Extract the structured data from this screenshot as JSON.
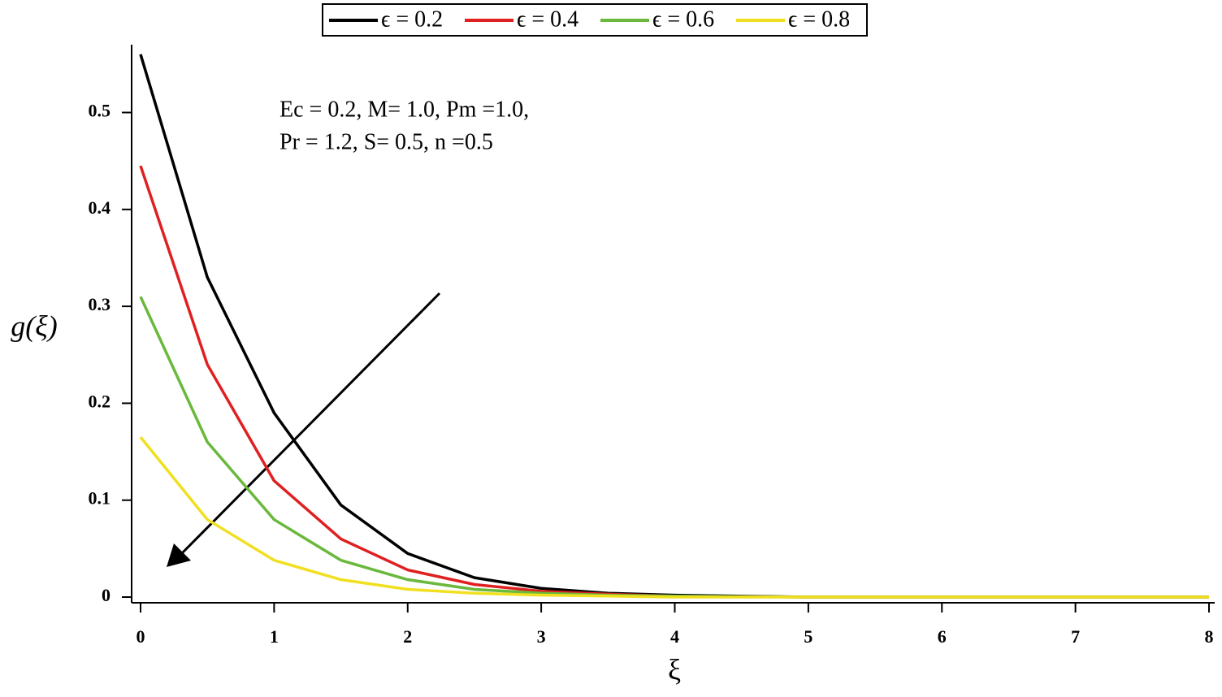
{
  "chart_data": {
    "type": "line",
    "x": [
      0,
      0.5,
      1,
      1.5,
      2,
      2.5,
      3,
      3.5,
      4,
      5,
      6,
      7,
      8
    ],
    "series": [
      {
        "name": "ϵ = 0.2",
        "color": "#000000",
        "values": [
          0.56,
          0.33,
          0.19,
          0.095,
          0.045,
          0.02,
          0.009,
          0.004,
          0.002,
          0,
          0,
          0,
          0
        ]
      },
      {
        "name": "ϵ = 0.4",
        "color": "#e02020",
        "values": [
          0.445,
          0.24,
          0.12,
          0.06,
          0.028,
          0.013,
          0.006,
          0.003,
          0.001,
          0,
          0,
          0,
          0
        ]
      },
      {
        "name": "ϵ = 0.6",
        "color": "#6ab83c",
        "values": [
          0.31,
          0.16,
          0.08,
          0.038,
          0.018,
          0.008,
          0.004,
          0.002,
          0.001,
          0,
          0,
          0,
          0
        ]
      },
      {
        "name": "ϵ = 0.8",
        "color": "#f0e020",
        "values": [
          0.165,
          0.08,
          0.038,
          0.018,
          0.008,
          0.004,
          0.002,
          0.001,
          0,
          0,
          0,
          0,
          0
        ]
      }
    ],
    "x_label": "ξ",
    "y_label": "g(ξ)",
    "annotations": [
      "Ec = 0.2, M= 1.0, Pm =1.0,",
      "Pr = 1.2, S= 0.5, n =0.5"
    ],
    "xlim": [
      0,
      8
    ],
    "xticks": [
      0,
      1,
      2,
      3,
      4,
      5,
      6,
      7,
      8
    ],
    "ylim": [
      0,
      0.57
    ],
    "yticks": [
      0,
      0.1,
      0.2,
      0.3,
      0.4,
      0.5
    ],
    "legend": "top"
  }
}
